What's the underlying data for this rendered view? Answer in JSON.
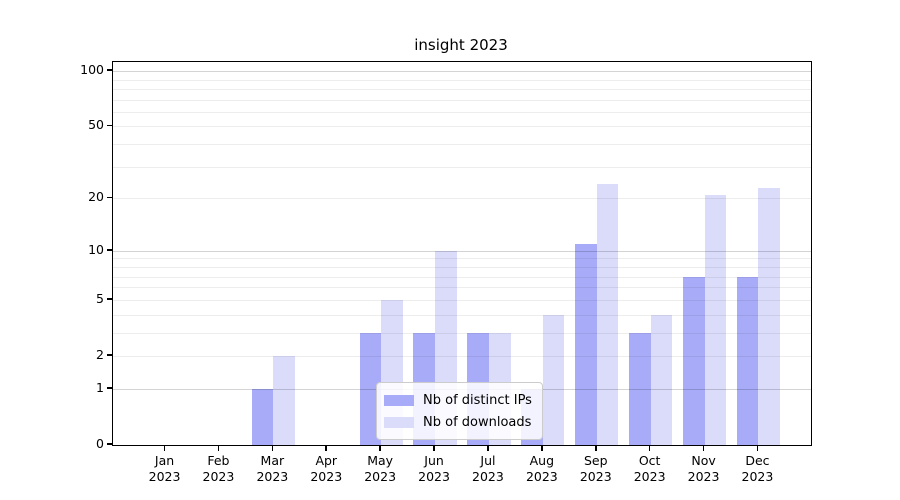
{
  "title": "insight 2023",
  "legend": {
    "items": [
      {
        "label": "Nb of distinct IPs",
        "color": "#a8abf8"
      },
      {
        "label": "Nb of downloads",
        "color": "#dadcfa"
      }
    ]
  },
  "chart_data": {
    "type": "bar",
    "title": "insight 2023",
    "categories": [
      "Jan 2023",
      "Feb 2023",
      "Mar 2023",
      "Apr 2023",
      "May 2023",
      "Jun 2023",
      "Jul 2023",
      "Aug 2023",
      "Sep 2023",
      "Oct 2023",
      "Nov 2023",
      "Dec 2023"
    ],
    "x_tick_line1": [
      "Jan",
      "Feb",
      "Mar",
      "Apr",
      "May",
      "Jun",
      "Jul",
      "Aug",
      "Sep",
      "Oct",
      "Nov",
      "Dec"
    ],
    "x_tick_line2": [
      "2023",
      "2023",
      "2023",
      "2023",
      "2023",
      "2023",
      "2023",
      "2023",
      "2023",
      "2023",
      "2023",
      "2023"
    ],
    "series": [
      {
        "name": "Nb of distinct IPs",
        "color": "#a8abf8",
        "values": [
          0,
          0,
          1,
          0,
          3,
          3,
          3,
          1,
          11,
          3,
          7,
          7
        ]
      },
      {
        "name": "Nb of downloads",
        "color": "#dadcfa",
        "values": [
          0,
          0,
          2,
          0,
          5,
          10,
          3,
          4,
          24,
          4,
          21,
          23
        ]
      }
    ],
    "xlabel": "",
    "ylabel": "",
    "y_scale": "log1p",
    "ylim": [
      0,
      112
    ],
    "y_ticks": [
      0,
      1,
      2,
      5,
      10,
      20,
      50,
      100
    ],
    "y_minor_gridlines": [
      2,
      3,
      4,
      5,
      6,
      7,
      8,
      9,
      20,
      30,
      40,
      50,
      60,
      70,
      80,
      90
    ],
    "y_major_gridlines": [
      1,
      10,
      100
    ],
    "grid": "horizontal",
    "legend_position": "lower center"
  }
}
